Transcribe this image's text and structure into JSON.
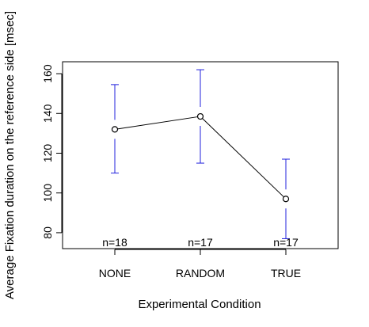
{
  "chart_data": {
    "type": "line",
    "title": "",
    "xlabel": "Experimental Condition",
    "ylabel": "Average Fixation duration on the reference side [msec]",
    "categories": [
      "NONE",
      "RANDOM",
      "TRUE"
    ],
    "series": [
      {
        "values": [
          132,
          138.5,
          97
        ],
        "error_low": [
          110,
          115,
          77
        ],
        "error_high": [
          154.5,
          162,
          117
        ],
        "line_color": "#000000",
        "errorbar_color": "#2222dd"
      }
    ],
    "annotations": [
      "n=18",
      "n=17",
      "n=17"
    ],
    "yticks": [
      80,
      100,
      120,
      140,
      160
    ],
    "ylim": [
      72,
      166
    ],
    "grid": false
  }
}
